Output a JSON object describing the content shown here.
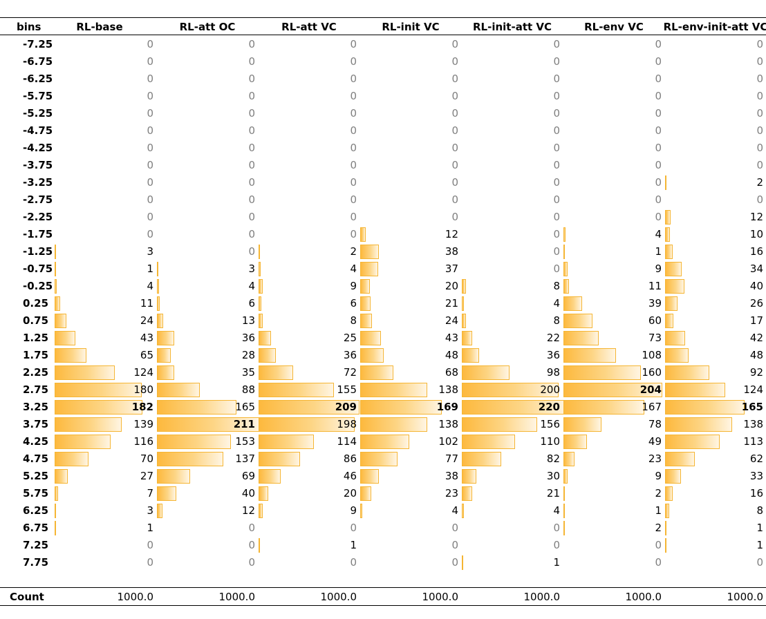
{
  "table": {
    "bins_header": "bins",
    "columns": [
      "RL-base",
      "RL-att OC",
      "RL-att VC",
      "RL-init VC",
      "RL-init-att VC",
      "RL-env VC",
      "RL-env-init-att VC"
    ],
    "bins": [
      "-7.25",
      "-6.75",
      "-6.25",
      "-5.75",
      "-5.25",
      "-4.75",
      "-4.25",
      "-3.75",
      "-3.25",
      "-2.75",
      "-2.25",
      "-1.75",
      "-1.25",
      "-0.75",
      "-0.25",
      "0.25",
      "0.75",
      "1.25",
      "1.75",
      "2.25",
      "2.75",
      "3.25",
      "3.75",
      "4.25",
      "4.75",
      "5.25",
      "5.75",
      "6.25",
      "6.75",
      "7.25",
      "7.75"
    ],
    "values": [
      [
        0,
        0,
        0,
        0,
        0,
        0,
        0,
        0,
        0,
        0,
        0,
        0,
        3,
        1,
        4,
        11,
        24,
        43,
        65,
        124,
        180,
        182,
        139,
        116,
        70,
        27,
        7,
        3,
        1,
        0,
        0
      ],
      [
        0,
        0,
        0,
        0,
        0,
        0,
        0,
        0,
        0,
        0,
        0,
        0,
        0,
        3,
        4,
        6,
        13,
        36,
        28,
        35,
        88,
        165,
        211,
        153,
        137,
        69,
        40,
        12,
        0,
        0,
        0
      ],
      [
        0,
        0,
        0,
        0,
        0,
        0,
        0,
        0,
        0,
        0,
        0,
        0,
        2,
        4,
        9,
        6,
        8,
        25,
        36,
        72,
        155,
        209,
        198,
        114,
        86,
        46,
        20,
        9,
        0,
        1,
        0
      ],
      [
        0,
        0,
        0,
        0,
        0,
        0,
        0,
        0,
        0,
        0,
        0,
        12,
        38,
        37,
        20,
        21,
        24,
        43,
        48,
        68,
        138,
        169,
        138,
        102,
        77,
        38,
        23,
        4,
        0,
        0,
        0
      ],
      [
        0,
        0,
        0,
        0,
        0,
        0,
        0,
        0,
        0,
        0,
        0,
        0,
        0,
        0,
        8,
        4,
        8,
        22,
        36,
        98,
        200,
        220,
        156,
        110,
        82,
        30,
        21,
        4,
        0,
        0,
        1
      ],
      [
        0,
        0,
        0,
        0,
        0,
        0,
        0,
        0,
        0,
        0,
        0,
        4,
        1,
        9,
        11,
        39,
        60,
        73,
        108,
        160,
        204,
        167,
        78,
        49,
        23,
        9,
        2,
        1,
        2,
        0,
        0
      ],
      [
        0,
        0,
        0,
        0,
        0,
        0,
        0,
        0,
        2,
        0,
        12,
        10,
        16,
        34,
        40,
        26,
        17,
        42,
        48,
        92,
        124,
        165,
        138,
        113,
        62,
        33,
        16,
        8,
        1,
        1,
        0
      ]
    ],
    "footer_label": "Count",
    "counts": [
      "1000.0",
      "1000.0",
      "1000.0",
      "1000.0",
      "1000.0",
      "1000.0",
      "1000.0"
    ],
    "colors": {
      "bar_fill": "#FDB93E",
      "bar_border": "#F5B533",
      "zero_text": "#7f7f7f"
    }
  }
}
